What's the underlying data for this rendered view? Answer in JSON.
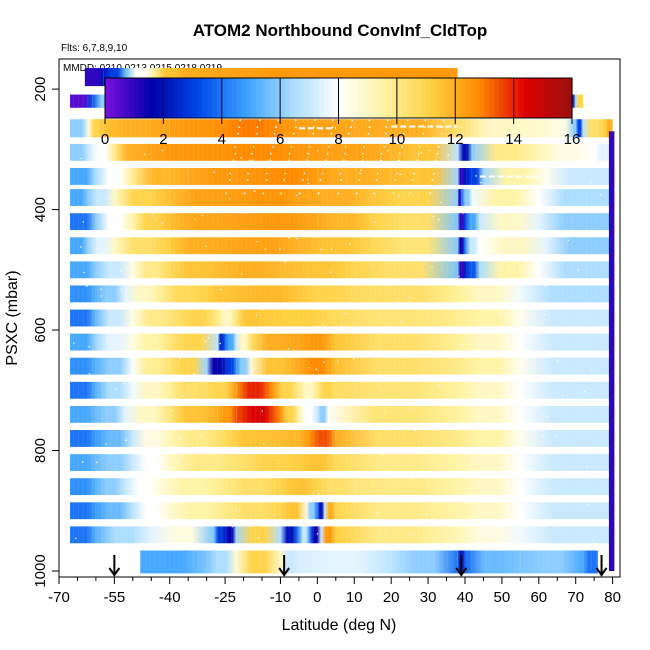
{
  "chart_data": {
    "type": "heatmap",
    "title": "ATOM2 Northbound ConvInf_CldTop",
    "flights_note": "Flts: 6,7,8,9,10",
    "dates_note": "MMDD: 0210,0213,0215,0218,0219",
    "xlabel": "Latitude (deg N)",
    "ylabel": "PSXC (mbar)",
    "xlim": [
      -70,
      82
    ],
    "ylim": [
      1010,
      150
    ],
    "x_tick_values": [
      -70,
      -55,
      -40,
      -25,
      -10,
      0,
      10,
      20,
      30,
      40,
      50,
      60,
      70,
      80
    ],
    "x_tick_labels": [
      "-70",
      "-55",
      "-40",
      "-25",
      "-10",
      "0",
      "10",
      "20",
      "30",
      "40",
      "50",
      "60",
      "70",
      "80"
    ],
    "x_minor_ticks": [
      -65,
      -60,
      -50,
      -45,
      -35,
      -30,
      -20,
      -15,
      -5,
      5,
      15,
      25,
      35,
      45,
      55,
      65,
      75
    ],
    "y_tick_values": [
      200,
      400,
      600,
      800,
      1000
    ],
    "y_tick_labels": [
      "200",
      "400",
      "600",
      "800",
      "1000"
    ],
    "colorbar": {
      "min": 0,
      "max": 16,
      "ticks": [
        0,
        2,
        4,
        6,
        8,
        10,
        12,
        14,
        16
      ],
      "tick_labels": [
        "0",
        "2",
        "4",
        "6",
        "8",
        "10",
        "12",
        "14",
        "16"
      ],
      "colors": [
        "#7a10e0",
        "#0000a8",
        "#0048e8",
        "#3aa0ff",
        "#a8dcff",
        "#ffffff",
        "#fff3a0",
        "#ffd040",
        "#ff8c00",
        "#dd0000",
        "#9a1010"
      ]
    },
    "arrow_latitudes": [
      -55,
      -9,
      39,
      77
    ],
    "rows": [
      {
        "p": 180,
        "h": 30,
        "segs": [
          [
            -63,
            -58,
            1
          ],
          [
            -58,
            -52,
            3
          ],
          [
            -52,
            -44,
            8
          ],
          [
            -44,
            -36,
            11.5
          ],
          [
            -36,
            38,
            12.5
          ]
        ]
      },
      {
        "p": 220,
        "h": 22,
        "segs": [
          [
            -67,
            -61,
            0.5
          ],
          [
            -61,
            -54,
            6
          ],
          [
            -54,
            -46,
            11
          ],
          [
            -46,
            -30,
            12.5
          ],
          [
            -30,
            -20,
            11.5
          ],
          [
            -20,
            38,
            12.3
          ],
          [
            38,
            68,
            9.2
          ],
          [
            68,
            70,
            2
          ],
          [
            70,
            72,
            11
          ]
        ]
      },
      {
        "p": 265,
        "h": 30,
        "segs": [
          [
            -67,
            -62,
            6
          ],
          [
            -62,
            -58,
            11
          ],
          [
            -58,
            -40,
            12
          ],
          [
            -40,
            -25,
            12.6
          ],
          [
            -25,
            -10,
            13
          ],
          [
            -10,
            10,
            12.3
          ],
          [
            10,
            38,
            12
          ],
          [
            38,
            62,
            9
          ],
          [
            62,
            70,
            8.5
          ],
          [
            70,
            72,
            3
          ],
          [
            72,
            78,
            10.5
          ],
          [
            78,
            80,
            12
          ]
        ]
      },
      {
        "p": 305,
        "h": 28,
        "segs": [
          [
            -67,
            -62,
            6
          ],
          [
            -62,
            -55,
            8
          ],
          [
            -55,
            -45,
            12
          ],
          [
            -45,
            -25,
            12.6
          ],
          [
            -25,
            -5,
            12.8
          ],
          [
            -5,
            20,
            12.3
          ],
          [
            20,
            38,
            11.5
          ],
          [
            38,
            42,
            2
          ],
          [
            42,
            60,
            10
          ],
          [
            60,
            75,
            8.5
          ],
          [
            75,
            80,
            7.5
          ]
        ]
      },
      {
        "p": 345,
        "h": 28,
        "segs": [
          [
            -67,
            -60,
            5
          ],
          [
            -60,
            -50,
            8
          ],
          [
            -50,
            -35,
            11.8
          ],
          [
            -35,
            -15,
            12.5
          ],
          [
            -15,
            0,
            12.8
          ],
          [
            0,
            20,
            12
          ],
          [
            20,
            38,
            11.5
          ],
          [
            38,
            40,
            1
          ],
          [
            40,
            45,
            3
          ],
          [
            45,
            62,
            9.5
          ],
          [
            62,
            80,
            7
          ]
        ]
      },
      {
        "p": 380,
        "h": 28,
        "segs": [
          [
            -67,
            -62,
            5
          ],
          [
            -62,
            -55,
            7
          ],
          [
            -55,
            -40,
            11
          ],
          [
            -40,
            -20,
            12.3
          ],
          [
            -20,
            -5,
            12.6
          ],
          [
            -5,
            15,
            12
          ],
          [
            15,
            38,
            11
          ],
          [
            38,
            39,
            1
          ],
          [
            39,
            42,
            6
          ],
          [
            42,
            60,
            9.5
          ],
          [
            60,
            80,
            6.5
          ]
        ]
      },
      {
        "p": 420,
        "h": 28,
        "segs": [
          [
            -67,
            -60,
            4
          ],
          [
            -60,
            -50,
            8
          ],
          [
            -50,
            -40,
            11
          ],
          [
            -40,
            -20,
            12.2
          ],
          [
            -20,
            0,
            12.5
          ],
          [
            0,
            15,
            11.8
          ],
          [
            15,
            38,
            10.5
          ],
          [
            38,
            40,
            1
          ],
          [
            40,
            44,
            5
          ],
          [
            44,
            60,
            9
          ],
          [
            60,
            80,
            6
          ]
        ]
      },
      {
        "p": 460,
        "h": 28,
        "segs": [
          [
            -67,
            -62,
            5
          ],
          [
            -62,
            -55,
            7.5
          ],
          [
            -55,
            -40,
            10.5
          ],
          [
            -40,
            -25,
            12
          ],
          [
            -25,
            -5,
            12.3
          ],
          [
            -5,
            15,
            11.5
          ],
          [
            15,
            38,
            10.3
          ],
          [
            38,
            40,
            1.5
          ],
          [
            40,
            44,
            7
          ],
          [
            44,
            62,
            9
          ],
          [
            62,
            80,
            6
          ]
        ]
      },
      {
        "p": 500,
        "h": 28,
        "segs": [
          [
            -67,
            -60,
            5
          ],
          [
            -60,
            -50,
            7
          ],
          [
            -50,
            -40,
            10
          ],
          [
            -40,
            -25,
            11.5
          ],
          [
            -25,
            -10,
            12
          ],
          [
            -10,
            10,
            11.5
          ],
          [
            10,
            38,
            10.5
          ],
          [
            38,
            40,
            1
          ],
          [
            40,
            44,
            3.5
          ],
          [
            44,
            60,
            9.5
          ],
          [
            60,
            80,
            6.5
          ]
        ]
      },
      {
        "p": 540,
        "h": 28,
        "segs": [
          [
            -67,
            -60,
            4.5
          ],
          [
            -60,
            -52,
            6
          ],
          [
            -52,
            -42,
            9
          ],
          [
            -42,
            -30,
            10.8
          ],
          [
            -30,
            -20,
            11.5
          ],
          [
            -20,
            -5,
            11.8
          ],
          [
            -5,
            10,
            11
          ],
          [
            10,
            38,
            10.5
          ],
          [
            38,
            55,
            9
          ],
          [
            55,
            80,
            6.5
          ]
        ]
      },
      {
        "p": 580,
        "h": 28,
        "segs": [
          [
            -67,
            -60,
            4
          ],
          [
            -60,
            -50,
            7
          ],
          [
            -50,
            -38,
            10
          ],
          [
            -38,
            -27,
            11
          ],
          [
            -27,
            -22,
            9
          ],
          [
            -22,
            -15,
            11.5
          ],
          [
            -15,
            5,
            11.2
          ],
          [
            5,
            38,
            10.3
          ],
          [
            38,
            55,
            9.5
          ],
          [
            55,
            80,
            7
          ]
        ]
      },
      {
        "p": 620,
        "h": 28,
        "segs": [
          [
            -67,
            -60,
            5
          ],
          [
            -60,
            -50,
            7.5
          ],
          [
            -50,
            -40,
            9.5
          ],
          [
            -40,
            -27,
            11
          ],
          [
            -27,
            -25,
            2.5
          ],
          [
            -25,
            -22,
            5
          ],
          [
            -22,
            -18,
            9
          ],
          [
            -18,
            -5,
            12
          ],
          [
            -5,
            5,
            12.5
          ],
          [
            5,
            38,
            10.5
          ],
          [
            38,
            55,
            9
          ],
          [
            55,
            80,
            7
          ]
        ]
      },
      {
        "p": 660,
        "h": 28,
        "segs": [
          [
            -67,
            -60,
            4.5
          ],
          [
            -60,
            -50,
            6
          ],
          [
            -50,
            -40,
            9.8
          ],
          [
            -40,
            -30,
            11
          ],
          [
            -30,
            -25,
            1.5
          ],
          [
            -25,
            -22,
            3
          ],
          [
            -22,
            -18,
            6
          ],
          [
            -18,
            -5,
            11.5
          ],
          [
            -5,
            5,
            12.8
          ],
          [
            5,
            38,
            10.5
          ],
          [
            38,
            55,
            9.5
          ],
          [
            55,
            80,
            7
          ]
        ]
      },
      {
        "p": 700,
        "h": 28,
        "segs": [
          [
            -67,
            -60,
            4
          ],
          [
            -60,
            -50,
            6.5
          ],
          [
            -50,
            -40,
            9
          ],
          [
            -40,
            -30,
            10.5
          ],
          [
            -30,
            -22,
            11
          ],
          [
            -22,
            -12,
            14
          ],
          [
            -12,
            -5,
            11
          ],
          [
            -5,
            0,
            9
          ],
          [
            0,
            5,
            11
          ],
          [
            5,
            38,
            10.3
          ],
          [
            38,
            55,
            9
          ],
          [
            55,
            80,
            7
          ]
        ]
      },
      {
        "p": 740,
        "h": 28,
        "segs": [
          [
            -67,
            -60,
            5
          ],
          [
            -60,
            -52,
            6
          ],
          [
            -52,
            -40,
            9
          ],
          [
            -40,
            -27,
            11.5
          ],
          [
            -27,
            -22,
            12.5
          ],
          [
            -22,
            -10,
            14.5
          ],
          [
            -10,
            -5,
            11
          ],
          [
            -5,
            0,
            8
          ],
          [
            0,
            3,
            6
          ],
          [
            3,
            38,
            10.3
          ],
          [
            38,
            55,
            9
          ],
          [
            55,
            80,
            7
          ]
        ]
      },
      {
        "p": 780,
        "h": 28,
        "segs": [
          [
            -67,
            -60,
            4
          ],
          [
            -60,
            -50,
            5.5
          ],
          [
            -50,
            -40,
            8.5
          ],
          [
            -40,
            -25,
            10
          ],
          [
            -25,
            -10,
            11.5
          ],
          [
            -10,
            -2,
            11.8
          ],
          [
            -2,
            5,
            13.5
          ],
          [
            5,
            38,
            10.5
          ],
          [
            38,
            55,
            9.5
          ],
          [
            55,
            80,
            7
          ]
        ]
      },
      {
        "p": 820,
        "h": 28,
        "segs": [
          [
            -67,
            -60,
            5
          ],
          [
            -60,
            -50,
            6
          ],
          [
            -50,
            -40,
            8
          ],
          [
            -40,
            -20,
            10
          ],
          [
            -20,
            -5,
            11
          ],
          [
            -5,
            5,
            11.5
          ],
          [
            5,
            38,
            10
          ],
          [
            38,
            55,
            9
          ],
          [
            55,
            80,
            7
          ]
        ]
      },
      {
        "p": 860,
        "h": 28,
        "segs": [
          [
            -67,
            -60,
            4.5
          ],
          [
            -60,
            -52,
            6
          ],
          [
            -52,
            -42,
            8
          ],
          [
            -42,
            -25,
            9.5
          ],
          [
            -25,
            -10,
            10.5
          ],
          [
            -10,
            0,
            11.5
          ],
          [
            0,
            10,
            10.5
          ],
          [
            10,
            38,
            10
          ],
          [
            38,
            55,
            9
          ],
          [
            55,
            80,
            7
          ]
        ]
      },
      {
        "p": 900,
        "h": 28,
        "segs": [
          [
            -67,
            -60,
            4
          ],
          [
            -60,
            -50,
            5.5
          ],
          [
            -50,
            -40,
            8
          ],
          [
            -40,
            -25,
            9.5
          ],
          [
            -25,
            -10,
            10.5
          ],
          [
            -10,
            -3,
            11.5
          ],
          [
            -3,
            0,
            6
          ],
          [
            0,
            2,
            2
          ],
          [
            2,
            5,
            12
          ],
          [
            5,
            38,
            10
          ],
          [
            38,
            55,
            9
          ],
          [
            55,
            80,
            7
          ]
        ]
      },
      {
        "p": 940,
        "h": 28,
        "segs": [
          [
            -67,
            -60,
            4
          ],
          [
            -60,
            -45,
            6.5
          ],
          [
            -45,
            -28,
            8.5
          ],
          [
            -28,
            -25,
            3
          ],
          [
            -25,
            -22,
            1.5
          ],
          [
            -22,
            -10,
            11
          ],
          [
            -10,
            -5,
            2
          ],
          [
            -5,
            -2,
            7
          ],
          [
            -2,
            1,
            1.5
          ],
          [
            1,
            5,
            12.5
          ],
          [
            5,
            38,
            10
          ],
          [
            38,
            55,
            8.5
          ],
          [
            55,
            80,
            7
          ]
        ]
      },
      {
        "p": 985,
        "h": 38,
        "segs": [
          [
            -48,
            -30,
            5
          ],
          [
            -30,
            -22,
            6.5
          ],
          [
            -22,
            -10,
            11
          ],
          [
            -10,
            -5,
            7
          ],
          [
            -5,
            20,
            7.5
          ],
          [
            20,
            38,
            6
          ],
          [
            38,
            40,
            2
          ],
          [
            40,
            55,
            5.5
          ],
          [
            55,
            72,
            6
          ],
          [
            72,
            76,
            4
          ]
        ]
      }
    ]
  }
}
